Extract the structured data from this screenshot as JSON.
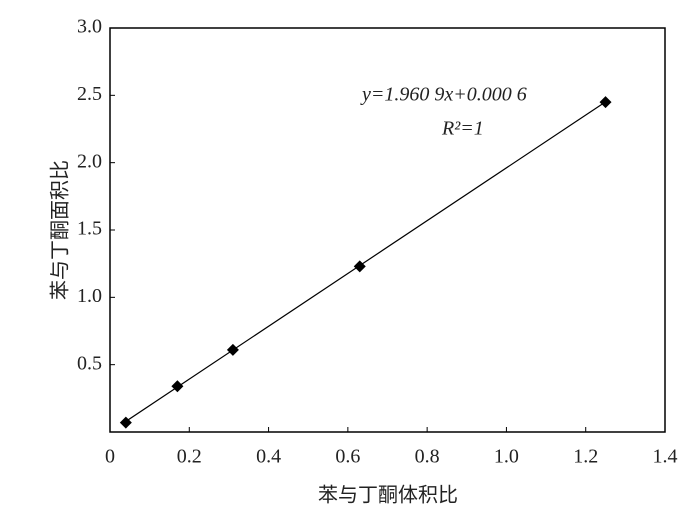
{
  "chart_data": {
    "type": "scatter",
    "xlabel": "苯与丁酮体积比",
    "ylabel": "苯与丁酮面积比",
    "equation": "y=1.960 9x+0.000 6",
    "r2_label": "R²=1",
    "trendline": {
      "slope": 1.9609,
      "intercept": 0.0006
    },
    "series": [
      {
        "color": "#000000",
        "x": [
          0.04,
          0.17,
          0.31,
          0.63,
          1.25
        ],
        "values": [
          0.07,
          0.34,
          0.61,
          1.23,
          2.45
        ]
      }
    ],
    "xlim": [
      0,
      1.4
    ],
    "xticks": [
      0,
      0.2,
      0.4,
      0.6,
      0.8,
      {
        "value": 1,
        "label": "1.0"
      },
      1.2,
      1.4
    ],
    "ylim": [
      0,
      3
    ],
    "yticks": [
      0.5,
      {
        "value": 1,
        "label": "1.0"
      },
      1.5,
      {
        "value": 2,
        "label": "2.0"
      },
      2.5,
      {
        "value": 3,
        "label": "3.0"
      }
    ],
    "grid": false
  }
}
